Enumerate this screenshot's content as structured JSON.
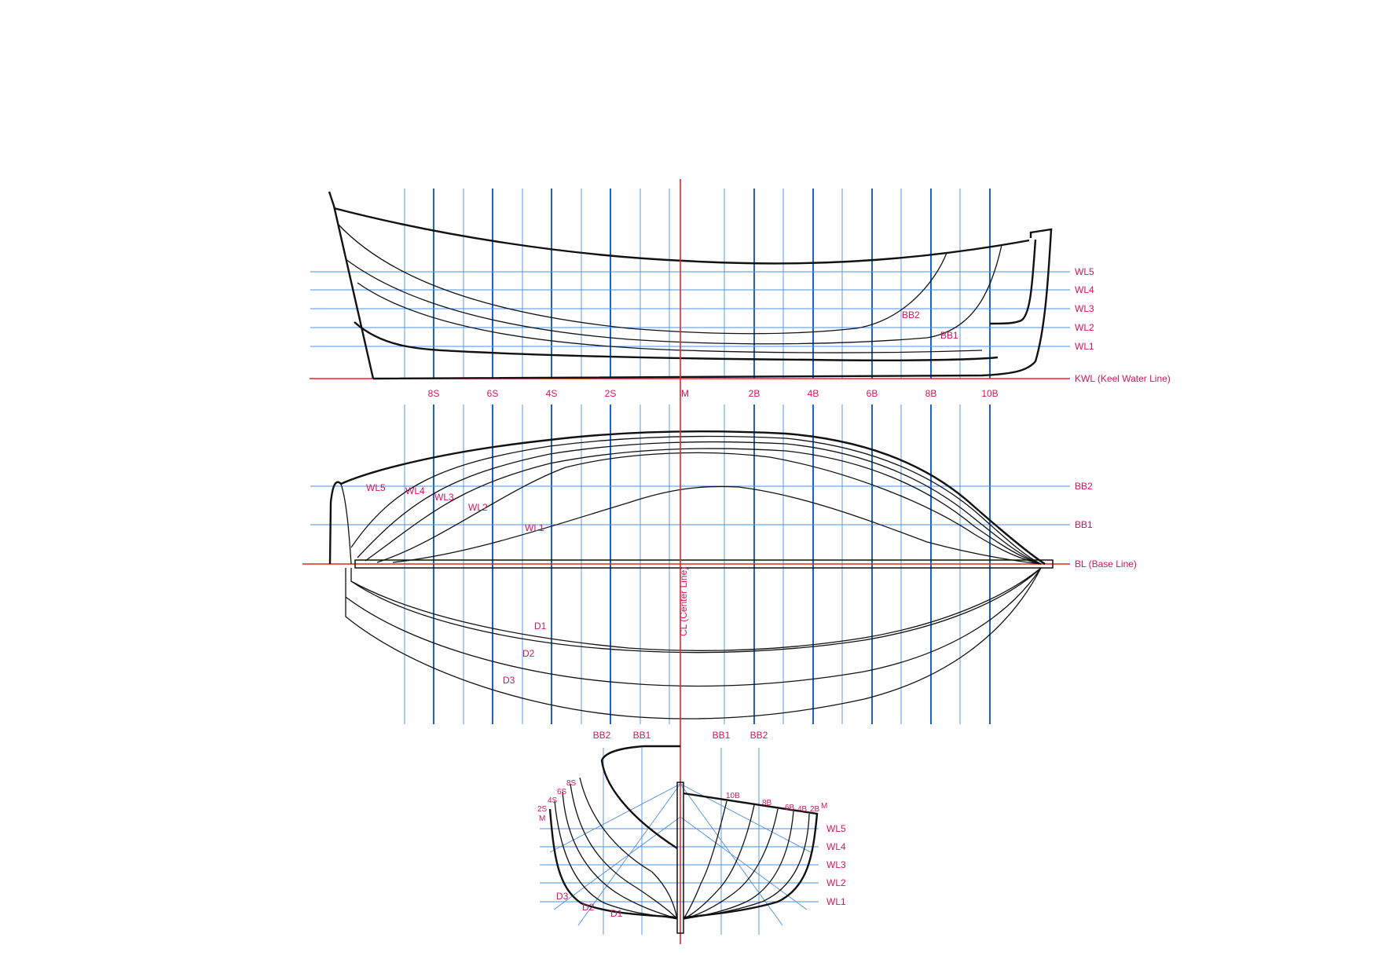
{
  "colors": {
    "label": "#d6165a",
    "grid_thin": "#4a90e2",
    "grid_thick": "#1a64c8",
    "reference": "#e8232a",
    "hull": "#111111"
  },
  "profile": {
    "waterlines": [
      "WL5",
      "WL4",
      "WL3",
      "WL2",
      "WL1"
    ],
    "keel_label": "KWL (Keel Water Line)",
    "buttock_labels": [
      "BB2",
      "BB1"
    ]
  },
  "stations": [
    "8S",
    "6S",
    "4S",
    "2S",
    "M",
    "2B",
    "4B",
    "6B",
    "8B",
    "10B"
  ],
  "plan": {
    "buttocks": [
      "BB2",
      "BB1"
    ],
    "baseline_label": "BL (Base Line)",
    "waterline_labels": [
      "WL5",
      "WL4",
      "WL3",
      "WL2",
      "WL1"
    ],
    "center_line_label": "CL  (Center Line)",
    "diagonals": [
      "D1",
      "D2",
      "D3"
    ]
  },
  "body_plan": {
    "top_labels": [
      "BB2",
      "BB1",
      "BB1",
      "BB2"
    ],
    "stern_stations": [
      "8S",
      "6S",
      "4S",
      "2S",
      "M"
    ],
    "bow_stations": [
      "10B",
      "8B",
      "6B",
      "4B",
      "2B",
      "M"
    ],
    "waterlines": [
      "WL5",
      "WL4",
      "WL3",
      "WL2",
      "WL1"
    ],
    "diagonals": [
      "D3",
      "D2",
      "D1"
    ]
  }
}
